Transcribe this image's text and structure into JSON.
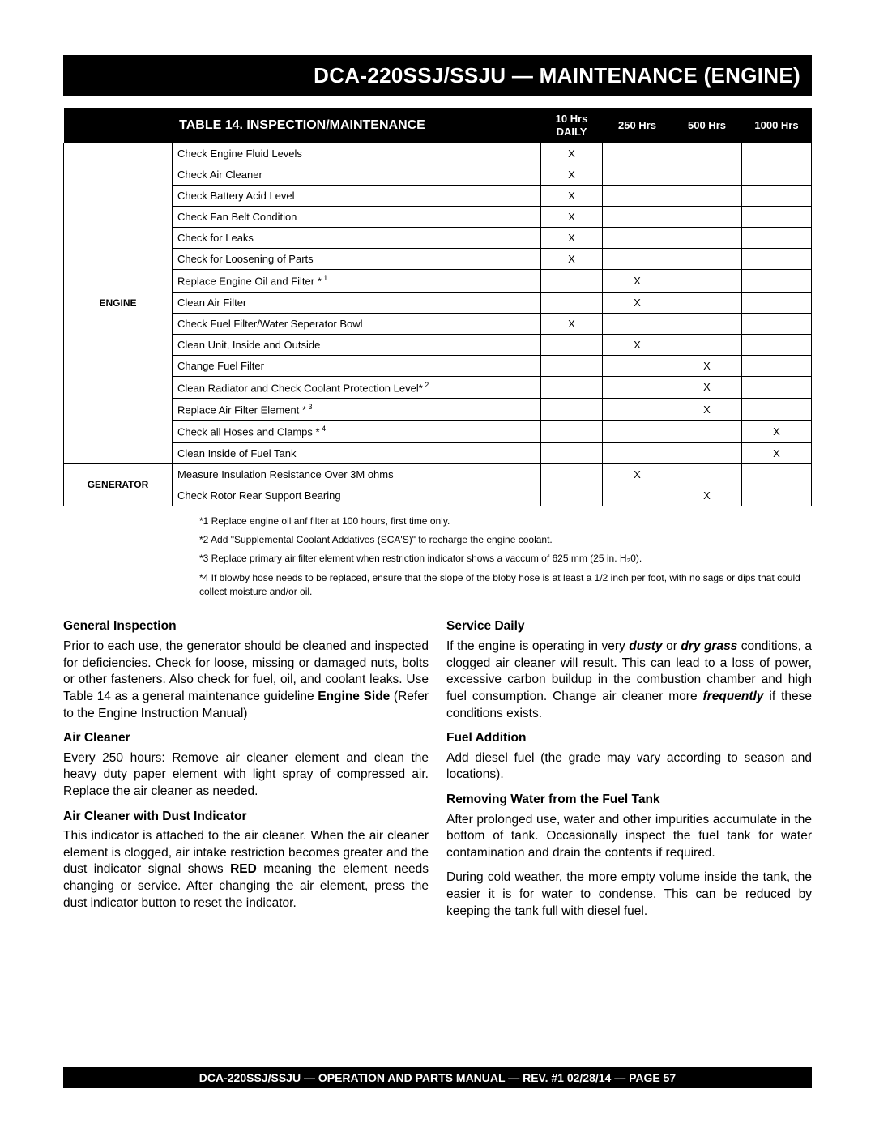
{
  "header": "DCA-220SSJ/SSJU — MAINTENANCE (ENGINE)",
  "table": {
    "title": "TABLE 14. INSPECTION/MAINTENANCE",
    "cols": [
      "10 Hrs\nDAILY",
      "250 Hrs",
      "500 Hrs",
      "1000 Hrs"
    ],
    "col_widths": {
      "cat": "134px",
      "desc": "auto",
      "c1": "76px",
      "c2": "86px",
      "c3": "86px",
      "c4": "86px"
    },
    "groups": [
      {
        "label": "ENGINE",
        "rowspan": 15,
        "rows": [
          {
            "d": "Check Engine Fluid Levels",
            "x": [
              1,
              0,
              0,
              0
            ]
          },
          {
            "d": "Check Air Cleaner",
            "x": [
              1,
              0,
              0,
              0
            ]
          },
          {
            "d": "Check Battery Acid Level",
            "x": [
              1,
              0,
              0,
              0
            ]
          },
          {
            "d": "Check Fan Belt Condition",
            "x": [
              1,
              0,
              0,
              0
            ]
          },
          {
            "d": "Check for Leaks",
            "x": [
              1,
              0,
              0,
              0
            ]
          },
          {
            "d": "Check for Loosening of Parts",
            "x": [
              1,
              0,
              0,
              0
            ]
          },
          {
            "d": "Replace Engine Oil and Filter *",
            "sup": "1",
            "x": [
              0,
              1,
              0,
              0
            ]
          },
          {
            "d": "Clean Air Filter",
            "x": [
              0,
              1,
              0,
              0
            ]
          },
          {
            "d": "Check Fuel Filter/Water Seperator Bowl",
            "x": [
              1,
              0,
              0,
              0
            ]
          },
          {
            "d": "Clean Unit, Inside and Outside",
            "x": [
              0,
              1,
              0,
              0
            ]
          },
          {
            "d": "Change Fuel Filter",
            "x": [
              0,
              0,
              1,
              0
            ]
          },
          {
            "d": "Clean Radiator and Check Coolant Protection Level*",
            "sup": "2",
            "x": [
              0,
              0,
              1,
              0
            ]
          },
          {
            "d": "Replace Air Filter Element *",
            "sup": "3",
            "x": [
              0,
              0,
              1,
              0
            ]
          },
          {
            "d": "Check all Hoses and Clamps *",
            "sup": "4",
            "x": [
              0,
              0,
              0,
              1
            ]
          },
          {
            "d": "Clean Inside of Fuel Tank",
            "x": [
              0,
              0,
              0,
              1
            ]
          }
        ]
      },
      {
        "label": "GENERATOR",
        "rowspan": 2,
        "rows": [
          {
            "d": "Measure Insulation Resistance Over 3M ohms",
            "x": [
              0,
              1,
              0,
              0
            ]
          },
          {
            "d": "Check Rotor Rear Support Bearing",
            "x": [
              0,
              0,
              1,
              0
            ]
          }
        ]
      }
    ]
  },
  "footnotes": [
    "*1  Replace engine oil anf filter at 100 hours, first time only.",
    "*2  Add \"Supplemental Coolant Addatives (SCA'S)\" to recharge the engine coolant.",
    "*3  Replace primary air filter element when restriction indicator shows a vaccum of 625 mm (25 in. H₂0).",
    "*4  If blowby hose needs to be replaced, ensure that the slope of the bloby hose is at least a 1/2 inch per foot, with no sags or dips that could collect moisture and/or oil."
  ],
  "left": {
    "h1": "General Inspection",
    "p1": "Prior to each use, the generator should be cleaned and inspected for deficiencies. Check for loose, missing or damaged nuts, bolts or other fasteners. Also check for fuel, oil, and coolant leaks. Use Table 14 as a general maintenance guideline <b>Engine Side</b> (Refer to the Engine Instruction Manual)",
    "h2": "Air Cleaner",
    "p2": "Every 250 hours: Remove air cleaner element and clean the heavy duty paper element with light spray of compressed air. Replace the air cleaner as needed.",
    "h3": "Air Cleaner with Dust Indicator",
    "p3": "This indicator is attached to the air cleaner. When the air cleaner element is clogged, air intake restriction becomes greater and the dust indicator signal shows <b>RED</b> meaning the element needs changing or service. After changing the air element, press the dust indicator button to reset the indicator."
  },
  "right": {
    "h1": "Service Daily",
    "p1": "If the engine is operating in very <b><i>dusty</i></b> or <b><i>dry grass</i></b> conditions, a clogged air cleaner will result. This can lead to a loss of power,  excessive carbon buildup in the combustion chamber  and high fuel consumption. Change air cleaner more <b><i>frequently</i></b> if these conditions exists.",
    "h2": "Fuel Addition",
    "p2": "Add diesel fuel (the grade may vary according to season and locations).",
    "h3": "Removing Water from the Fuel Tank",
    "p3": "After prolonged use, water and other impurities accumulate in the bottom of tank. Occasionally inspect the fuel tank for water contamination and drain the contents if required.",
    "p4": "During cold weather, the more empty volume inside the tank, the easier it is for water to condense. This can be reduced by keeping the tank full with diesel fuel."
  },
  "footer": "DCA-220SSJ/SSJU —  OPERATION AND PARTS MANUAL — REV. #1  02/28/14 — PAGE 57"
}
